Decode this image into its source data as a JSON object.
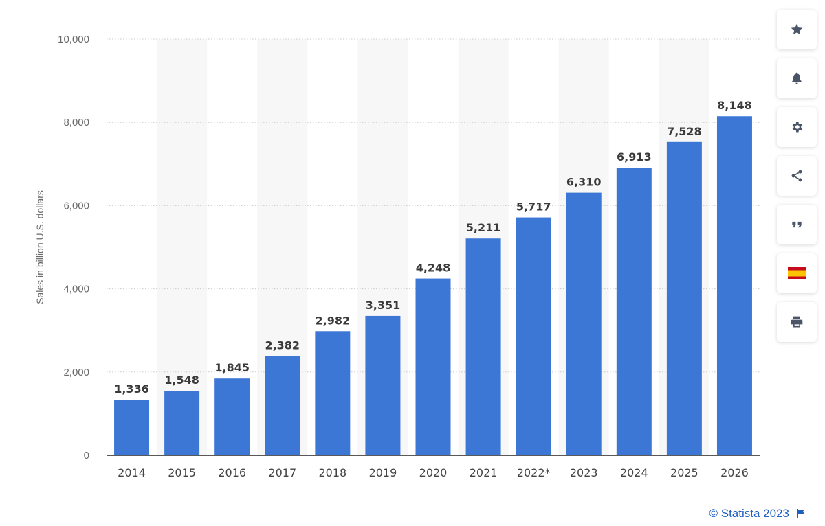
{
  "chart_data": {
    "type": "bar",
    "categories": [
      "2014",
      "2015",
      "2016",
      "2017",
      "2018",
      "2019",
      "2020",
      "2021",
      "2022*",
      "2023",
      "2024",
      "2025",
      "2026"
    ],
    "values": [
      1336,
      1548,
      1845,
      2382,
      2982,
      3351,
      4248,
      5211,
      5717,
      6310,
      6913,
      7528,
      8148
    ],
    "data_labels": [
      "1,336",
      "1,548",
      "1,845",
      "2,382",
      "2,982",
      "3,351",
      "4,248",
      "5,211",
      "5,717",
      "6,310",
      "6,913",
      "7,528",
      "8,148"
    ],
    "ylabel": "Sales in billion U.S. dollars",
    "ylim": [
      0,
      10000
    ],
    "yticks": [
      0,
      2000,
      4000,
      6000,
      8000,
      10000
    ],
    "ytick_labels": [
      "0",
      "2,000",
      "4,000",
      "6,000",
      "8,000",
      "10,000"
    ],
    "grid": true,
    "bar_color": "#3d77d6",
    "band_color": "#f7f7f7"
  },
  "sidebar": {
    "buttons": [
      {
        "icon": "star-icon",
        "name": "favorite-button"
      },
      {
        "icon": "bell-icon",
        "name": "notification-button"
      },
      {
        "icon": "gear-icon",
        "name": "settings-button"
      },
      {
        "icon": "share-icon",
        "name": "share-button"
      },
      {
        "icon": "quote-icon",
        "name": "cite-button"
      },
      {
        "icon": "spain-flag-icon",
        "name": "language-button"
      },
      {
        "icon": "print-icon",
        "name": "print-button"
      }
    ],
    "icon_color": "#4a5568"
  },
  "footer": {
    "credit": "© Statista 2023",
    "credit_color": "#1f5fbf"
  }
}
